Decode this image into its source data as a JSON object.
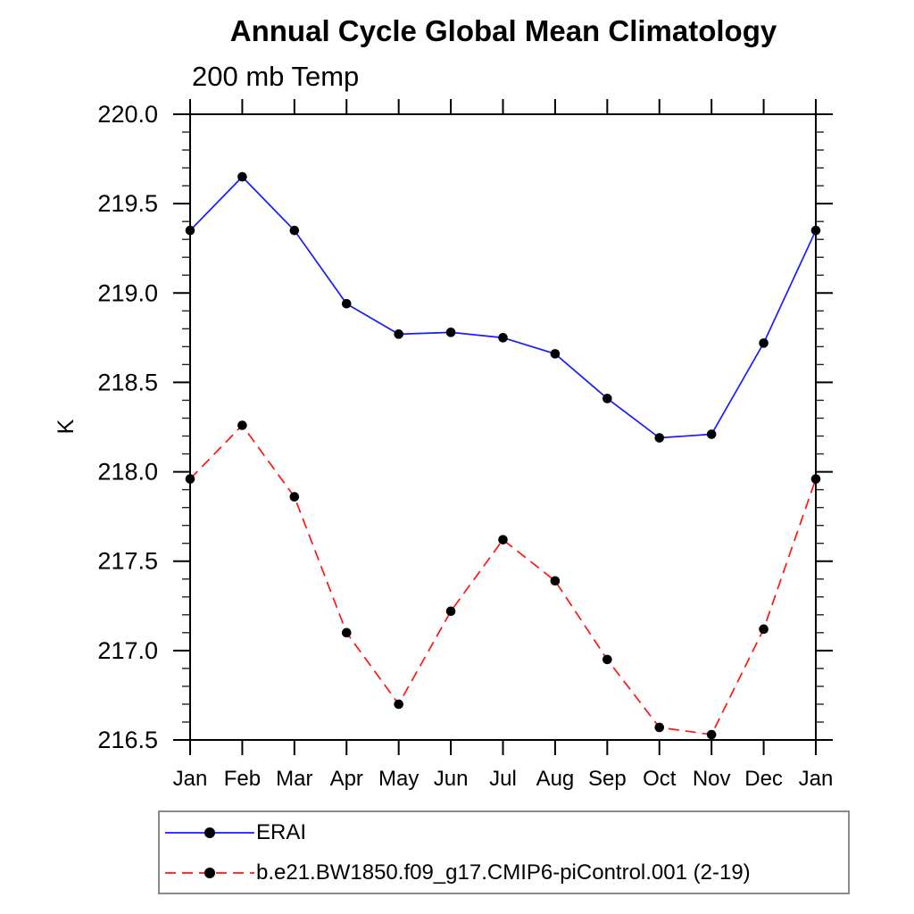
{
  "header": {
    "title": "Annual Cycle Global Mean Climatology",
    "subtitle": "200 mb Temp"
  },
  "chart_data": {
    "type": "line",
    "title": "Annual Cycle Global Mean Climatology",
    "subtitle": "200 mb Temp",
    "xlabel": "",
    "ylabel": "K",
    "categories": [
      "Jan",
      "Feb",
      "Mar",
      "Apr",
      "May",
      "Jun",
      "Jul",
      "Aug",
      "Sep",
      "Oct",
      "Nov",
      "Dec",
      "Jan"
    ],
    "ylim": [
      216.5,
      220.0
    ],
    "y_ticks": [
      "220.0",
      "219.5",
      "219.0",
      "218.5",
      "218.0",
      "217.5",
      "217.0",
      "216.5"
    ],
    "y_minor_step": 0.1,
    "grid": false,
    "legend_position": "bottom-left",
    "series": [
      {
        "name": "ERAI",
        "line_style": "solid",
        "color": "#1a1aff",
        "marker": "filled-circle",
        "marker_color": "#000000",
        "values": [
          219.35,
          219.65,
          219.35,
          218.94,
          218.77,
          218.78,
          218.75,
          218.66,
          218.41,
          218.19,
          218.21,
          218.72,
          219.35
        ]
      },
      {
        "name": "b.e21.BW1850.f09_g17.CMIP6-piControl.001 (2-19)",
        "line_style": "dashed",
        "color": "#ff1414",
        "marker": "filled-circle",
        "marker_color": "#000000",
        "values": [
          217.96,
          218.26,
          217.86,
          217.1,
          216.7,
          217.22,
          217.62,
          217.39,
          216.95,
          216.57,
          216.53,
          217.12,
          217.96
        ]
      }
    ]
  },
  "legend": {
    "items": [
      {
        "label": "ERAI"
      },
      {
        "label": "b.e21.BW1850.f09_g17.CMIP6-piControl.001 (2-19)"
      }
    ]
  },
  "colors": {
    "background": "#ffffff",
    "axis": "#000000",
    "legend_border": "#8a8a8a",
    "erai_line": "#1a1aff",
    "model_line": "#ff1414",
    "marker": "#000000"
  }
}
